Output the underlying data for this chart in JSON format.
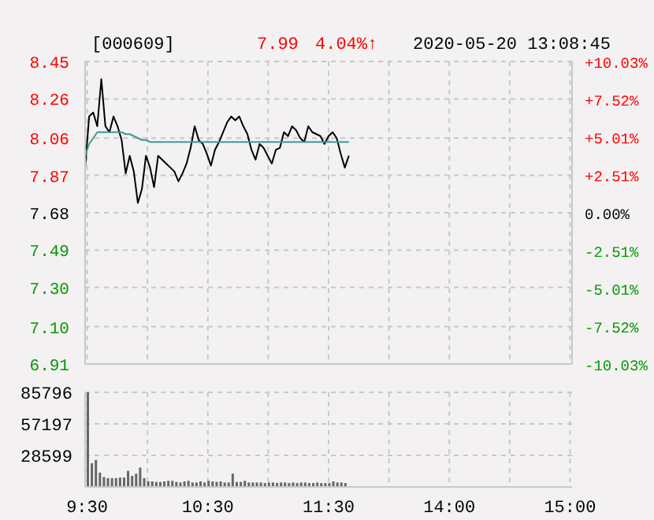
{
  "chart_data": [
    {
      "type": "line",
      "title": "[000609]",
      "annotations": [
        "7.99",
        "4.04%↑",
        "2020-05-20 13:08:45"
      ],
      "categories": [
        null,
        null,
        null,
        null,
        null,
        null,
        null,
        null,
        null,
        null,
        null,
        null,
        null,
        null,
        null,
        null,
        null,
        null,
        null,
        null,
        null,
        null,
        null,
        null,
        null,
        null,
        null,
        null,
        null,
        null,
        null,
        null,
        null,
        null,
        null,
        null,
        null,
        null,
        null,
        null,
        null,
        null,
        null,
        null,
        null,
        null,
        null,
        null,
        null,
        null,
        null,
        null,
        null,
        null,
        null,
        null,
        null,
        null,
        null,
        null,
        null,
        null,
        null,
        null,
        null,
        null,
        null,
        null,
        null,
        null,
        null,
        null,
        null,
        null,
        null,
        null,
        null,
        null,
        null,
        null,
        null,
        null,
        null,
        null,
        null,
        null,
        null,
        null,
        null,
        null,
        null,
        null,
        null,
        null,
        null,
        null,
        null,
        null,
        null,
        null,
        null,
        null,
        null,
        null,
        null,
        null,
        null,
        null,
        null,
        null,
        null,
        null,
        null,
        null,
        null,
        null,
        null,
        null,
        null,
        null,
        null
      ],
      "series": [
        {
          "color": "#000000",
          "values": [
            7.91,
            8.17,
            8.19,
            8.12,
            8.36,
            8.12,
            8.09,
            8.17,
            8.12,
            8.05,
            7.88,
            7.97,
            7.89,
            7.73,
            7.8,
            7.97,
            7.91,
            7.81,
            7.97,
            7.95,
            7.93,
            7.91,
            7.89,
            7.84,
            7.88,
            7.93,
            8.01,
            8.12,
            8.05,
            8.03,
            7.98,
            7.92,
            8.0,
            8.04,
            8.09,
            8.14,
            8.17,
            8.15,
            8.17,
            8.12,
            8.08,
            8.0,
            7.95,
            8.03,
            8.01,
            7.97,
            7.93,
            8.0,
            8.01,
            8.09,
            8.07,
            8.12,
            8.1,
            8.06,
            8.04,
            8.12,
            8.09,
            8.08,
            8.07,
            8.03,
            8.07,
            8.09,
            8.06,
            7.98,
            7.91,
            7.97,
            null,
            null,
            null,
            null,
            null,
            null,
            null,
            null,
            null,
            null,
            null,
            null,
            null,
            null,
            null,
            null,
            null,
            null,
            null,
            null,
            null,
            null,
            null,
            null,
            null,
            null,
            null,
            null,
            null,
            null,
            null,
            null,
            null,
            null,
            null,
            null,
            null,
            null,
            null,
            null,
            null,
            null,
            null,
            null,
            null,
            null,
            null,
            null,
            null,
            null,
            null,
            null,
            null,
            null,
            null
          ]
        },
        {
          "color": "#3a9c95",
          "values": [
            7.97,
            8.03,
            8.06,
            8.09,
            8.09,
            8.09,
            8.09,
            8.09,
            8.09,
            8.09,
            8.08,
            8.08,
            8.07,
            8.06,
            8.05,
            8.05,
            8.04,
            8.04,
            8.04,
            8.04,
            8.04,
            8.04,
            8.04,
            8.04,
            8.04,
            8.04,
            8.04,
            8.04,
            8.04,
            8.04,
            8.04,
            8.04,
            8.04,
            8.04,
            8.04,
            8.04,
            8.04,
            8.04,
            8.04,
            8.04,
            8.04,
            8.04,
            8.04,
            8.04,
            8.04,
            8.04,
            8.04,
            8.04,
            8.04,
            8.04,
            8.04,
            8.04,
            8.04,
            8.04,
            8.04,
            8.04,
            8.04,
            8.04,
            8.04,
            8.04,
            8.04,
            8.04,
            8.04,
            8.04,
            8.04,
            8.04,
            null,
            null,
            null,
            null,
            null,
            null,
            null,
            null,
            null,
            null,
            null,
            null,
            null,
            null,
            null,
            null,
            null,
            null,
            null,
            null,
            null,
            null,
            null,
            null,
            null,
            null,
            null,
            null,
            null,
            null,
            null,
            null,
            null,
            null,
            null,
            null,
            null,
            null,
            null,
            null,
            null,
            null,
            null,
            null,
            null,
            null,
            null,
            null,
            null,
            null,
            null,
            null,
            null,
            null,
            null
          ]
        }
      ],
      "ylim": [
        6.91,
        8.45
      ],
      "yticks": [
        6.91,
        {
          "value": 7.1,
          "label": "7.10"
        },
        {
          "value": 7.3,
          "label": "7.30"
        },
        7.49,
        7.68,
        7.87,
        8.06,
        8.26,
        8.45
      ],
      "y2lim": [
        -10.03,
        10.03
      ],
      "y2ticks": [
        {
          "value": -10.03,
          "label": "-10.03%"
        },
        {
          "value": -7.52,
          "label": "-7.52%"
        },
        {
          "value": -5.01,
          "label": "-5.01%"
        },
        {
          "value": -2.51,
          "label": "-2.51%"
        },
        {
          "value": 0,
          "label": "0.00%"
        },
        {
          "value": 2.51,
          "label": "+2.51%"
        },
        {
          "value": 5.01,
          "label": "+5.01%"
        },
        {
          "value": 7.52,
          "label": "+7.52%"
        },
        {
          "value": 10.03,
          "label": "+10.03%"
        }
      ],
      "tick_labels": "y",
      "grid": true,
      "legend": false,
      "marker": "none",
      "line_style": "solid"
    },
    {
      "type": "bar",
      "color": "#666666",
      "categories": [
        "9:30",
        null,
        null,
        null,
        null,
        null,
        null,
        null,
        null,
        null,
        null,
        null,
        null,
        null,
        null,
        null,
        null,
        null,
        null,
        null,
        null,
        null,
        null,
        null,
        null,
        null,
        null,
        null,
        null,
        null,
        "10:30",
        null,
        null,
        null,
        null,
        null,
        null,
        null,
        null,
        null,
        null,
        null,
        null,
        null,
        null,
        null,
        null,
        null,
        null,
        null,
        null,
        null,
        null,
        null,
        null,
        null,
        null,
        null,
        null,
        null,
        "11:30",
        null,
        null,
        null,
        null,
        null,
        null,
        null,
        null,
        null,
        null,
        null,
        null,
        null,
        null,
        null,
        null,
        null,
        null,
        null,
        null,
        null,
        null,
        null,
        null,
        null,
        null,
        null,
        null,
        null,
        "14:00",
        null,
        null,
        null,
        null,
        null,
        null,
        null,
        null,
        null,
        null,
        null,
        null,
        null,
        null,
        null,
        null,
        null,
        null,
        null,
        null,
        null,
        null,
        null,
        null,
        null,
        null,
        null,
        null,
        null,
        "15:00"
      ],
      "values": [
        85796,
        21500,
        24500,
        13000,
        9000,
        8000,
        8000,
        8000,
        8500,
        8500,
        14500,
        10000,
        12000,
        17500,
        8000,
        5000,
        5000,
        4500,
        4500,
        5000,
        5500,
        5500,
        4500,
        4000,
        5000,
        5500,
        4000,
        4000,
        5000,
        4000,
        5500,
        5000,
        4500,
        5000,
        4000,
        4000,
        12000,
        4500,
        4500,
        5500,
        4000,
        4000,
        4000,
        4000,
        3500,
        4000,
        4000,
        3500,
        4000,
        4000,
        3500,
        4000,
        3500,
        4000,
        4000,
        3500,
        3500,
        4000,
        3500,
        3500,
        3500,
        5000,
        4000,
        4000,
        3500,
        null,
        null,
        null,
        null,
        null,
        null,
        null,
        null,
        null,
        null,
        null,
        null,
        null,
        null,
        null,
        null,
        null,
        null,
        null,
        null,
        null,
        null,
        null,
        null,
        null,
        null,
        null,
        null,
        null,
        null,
        null,
        null,
        null,
        null,
        null,
        null,
        null,
        null,
        null,
        null,
        null,
        null,
        null,
        null,
        null,
        null,
        null,
        null,
        null,
        null,
        null,
        null,
        null,
        null,
        null,
        null
      ],
      "ylim": [
        0,
        85796
      ],
      "yticks": [
        {
          "value": 0,
          "label": null
        },
        28599,
        57197,
        85796
      ],
      "grid": true,
      "legend": false
    }
  ]
}
